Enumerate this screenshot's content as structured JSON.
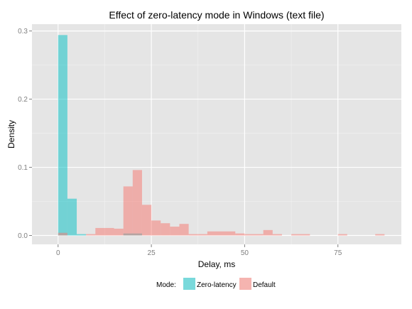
{
  "chart_data": {
    "type": "histogram",
    "title": "Effect of zero-latency mode in Windows (text file)",
    "xlabel": "Delay, ms",
    "ylabel": "Density",
    "xlim": [
      -7,
      92
    ],
    "ylim": [
      -0.013,
      0.31
    ],
    "x_ticks": [
      0,
      25,
      50,
      75
    ],
    "y_ticks": [
      0.0,
      0.1,
      0.2,
      0.3
    ],
    "y_tick_labels": [
      "0.0",
      "0.1",
      "0.2",
      "0.3"
    ],
    "bin_width": 2.5,
    "grid": true,
    "legend": {
      "title": "Mode:",
      "position": "bottom",
      "entries": [
        "Zero-latency",
        "Default"
      ]
    },
    "series": [
      {
        "name": "Zero-latency",
        "color": "#00BFC4",
        "bins": [
          {
            "x0": 0,
            "x1": 2.5,
            "value": 0.294
          },
          {
            "x0": 2.5,
            "x1": 5,
            "value": 0.054
          },
          {
            "x0": 5,
            "x1": 7.5,
            "value": 0.002
          },
          {
            "x0": 17.5,
            "x1": 22.5,
            "value": 0.003
          }
        ]
      },
      {
        "name": "Default",
        "color": "#F8766D",
        "bins": [
          {
            "x0": 0,
            "x1": 2.5,
            "value": 0.004
          },
          {
            "x0": 7.5,
            "x1": 10,
            "value": 0.002
          },
          {
            "x0": 10,
            "x1": 12.5,
            "value": 0.011
          },
          {
            "x0": 12.5,
            "x1": 15,
            "value": 0.011
          },
          {
            "x0": 15,
            "x1": 17.5,
            "value": 0.01
          },
          {
            "x0": 17.5,
            "x1": 20,
            "value": 0.072
          },
          {
            "x0": 20,
            "x1": 22.5,
            "value": 0.096
          },
          {
            "x0": 22.5,
            "x1": 25,
            "value": 0.045
          },
          {
            "x0": 25,
            "x1": 27.5,
            "value": 0.022
          },
          {
            "x0": 27.5,
            "x1": 30,
            "value": 0.018
          },
          {
            "x0": 30,
            "x1": 32.5,
            "value": 0.013
          },
          {
            "x0": 32.5,
            "x1": 35,
            "value": 0.017
          },
          {
            "x0": 35,
            "x1": 37.5,
            "value": 0.002
          },
          {
            "x0": 37.5,
            "x1": 40,
            "value": 0.002
          },
          {
            "x0": 40,
            "x1": 47.5,
            "value": 0.006
          },
          {
            "x0": 47.5,
            "x1": 50,
            "value": 0.003
          },
          {
            "x0": 50,
            "x1": 52.5,
            "value": 0.002
          },
          {
            "x0": 52.5,
            "x1": 55,
            "value": 0.002
          },
          {
            "x0": 55,
            "x1": 57.5,
            "value": 0.008
          },
          {
            "x0": 57.5,
            "x1": 60,
            "value": 0.002
          },
          {
            "x0": 62.5,
            "x1": 67.5,
            "value": 0.002
          },
          {
            "x0": 75,
            "x1": 77.5,
            "value": 0.002
          },
          {
            "x0": 85,
            "x1": 87.5,
            "value": 0.002
          }
        ]
      }
    ]
  }
}
